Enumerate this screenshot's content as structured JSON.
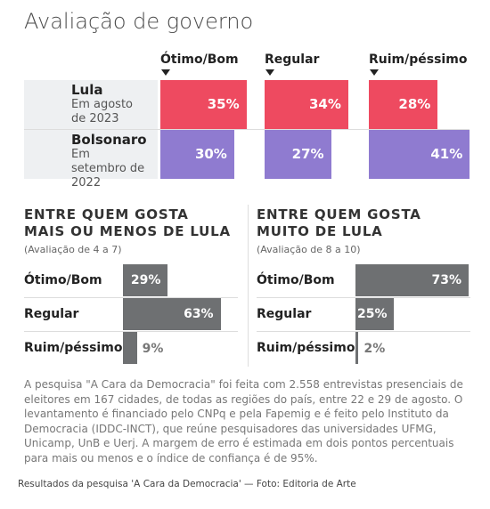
{
  "title": "Avaliação de governo",
  "chart_data": [
    {
      "type": "bar-grid",
      "categories": [
        "Ótimo/Bom",
        "Regular",
        "Ruim/péssimo"
      ],
      "series": [
        {
          "name": "Lula",
          "period": "Em agosto de 2023",
          "color": "#ee4a60",
          "values": [
            35,
            34,
            28
          ],
          "value_labels": [
            "35%",
            "34%",
            "28%"
          ]
        },
        {
          "name": "Bolsonaro",
          "period": "Em setembro de 2022",
          "color": "#8f7bd0",
          "values": [
            30,
            27,
            41
          ],
          "value_labels": [
            "30%",
            "27%",
            "41%"
          ]
        }
      ],
      "xlim": [
        0,
        42
      ]
    },
    {
      "type": "bar",
      "title": "ENTRE QUEM GOSTA MAIS OU MENOS DE LULA",
      "subtitle": "(Avaliação de 4 a 7)",
      "categories": [
        "Ótimo/Bom",
        "Regular",
        "Ruim/péssimo"
      ],
      "values": [
        29,
        63,
        9
      ],
      "value_labels": [
        "29%",
        "63%",
        "9%"
      ],
      "color": "#6e7072",
      "xlim": [
        0,
        73
      ]
    },
    {
      "type": "bar",
      "title": "ENTRE QUEM GOSTA MUITO DE LULA",
      "subtitle": "(Avaliação de 8 a 10)",
      "categories": [
        "Ótimo/Bom",
        "Regular",
        "Ruim/péssimo"
      ],
      "values": [
        73,
        25,
        2
      ],
      "value_labels": [
        "73%",
        "25%",
        "2%"
      ],
      "color": "#6e7072",
      "xlim": [
        0,
        73
      ]
    }
  ],
  "note": "A pesquisa \"A Cara da Democracia\" foi feita com 2.558 entrevistas presenciais de eleitores em 167 cidades, de todas as regiões do país, entre 22 e 29 de agosto. O levantamento é financiado pelo CNPq e pela Fapemig e é feito pelo Instituto da Democracia (IDDC-INCT), que reúne pesquisadores das universidades UFMG, Unicamp, UnB e Uerj. A margem de erro é estimada em dois pontos percentuais para mais ou menos e o índice de confiança é de 95%.",
  "caption": "Resultados da pesquisa 'A Cara da Democracia' — Foto: Editoria de Arte"
}
